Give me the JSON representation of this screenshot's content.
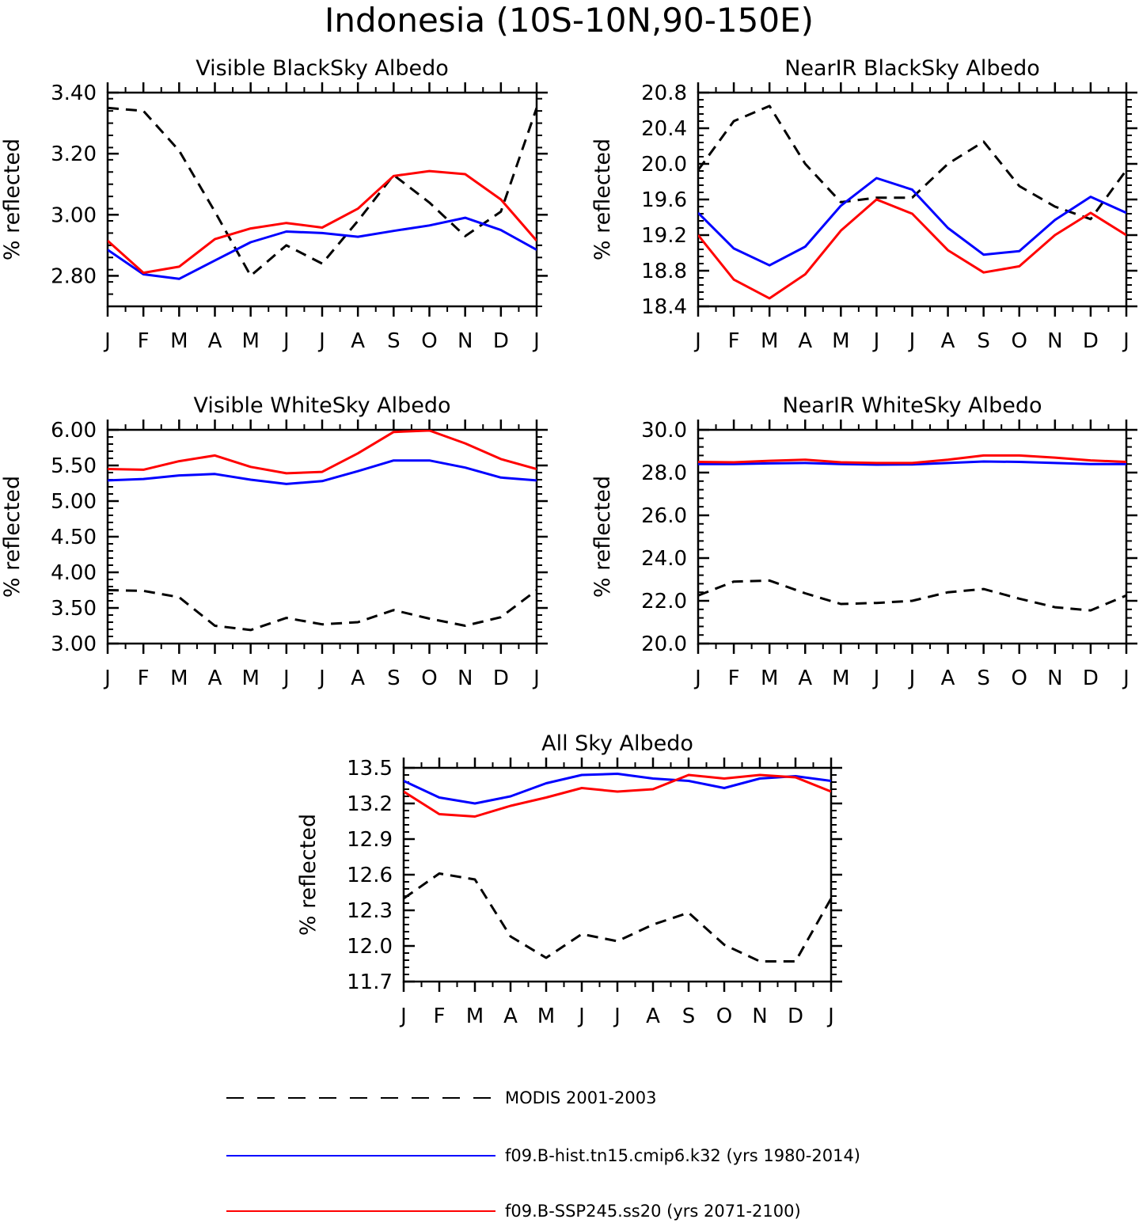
{
  "figure": {
    "title": "Indonesia (10S-10N,90-150E)"
  },
  "legend": [
    {
      "name": "MODIS 2001-2003",
      "color": "#000000",
      "dash": true
    },
    {
      "name": "f09.B-hist.tn15.cmip6.k32 (yrs 1980-2014)",
      "color": "#0000ff",
      "dash": false
    },
    {
      "name": "f09.B-SSP245.ss20 (yrs 2071-2100)",
      "color": "#ff0000",
      "dash": false
    }
  ],
  "chart_data": [
    {
      "type": "line",
      "title": "Visible BlackSky Albedo",
      "ylabel": "% reflected",
      "categories": [
        "J",
        "F",
        "M",
        "A",
        "M",
        "J",
        "J",
        "A",
        "S",
        "O",
        "N",
        "D",
        "J"
      ],
      "ylim": [
        2.7,
        3.4
      ],
      "yticks": [
        "2.80",
        "3.00",
        "3.20",
        "3.40"
      ],
      "series": [
        {
          "name": "MODIS 2001-2003",
          "color": "#000000",
          "dash": true,
          "values": [
            3.35,
            3.34,
            3.21,
            3.01,
            2.8,
            2.9,
            2.84,
            2.98,
            3.13,
            3.04,
            2.93,
            3.01,
            3.35
          ]
        },
        {
          "name": "f09.B-hist.tn15.cmip6.k32 (yrs 1980-2014)",
          "color": "#0000ff",
          "values": [
            2.885,
            2.805,
            2.79,
            2.85,
            2.91,
            2.945,
            2.94,
            2.928,
            2.947,
            2.965,
            2.99,
            2.95,
            2.885
          ]
        },
        {
          "name": "f09.B-SSP245.ss20 (yrs 2071-2100)",
          "color": "#ff0000",
          "values": [
            2.915,
            2.81,
            2.83,
            2.92,
            2.955,
            2.973,
            2.958,
            3.02,
            3.127,
            3.143,
            3.133,
            3.05,
            2.915
          ]
        }
      ]
    },
    {
      "type": "line",
      "title": "NearIR BlackSky Albedo",
      "ylabel": "% reflected",
      "categories": [
        "J",
        "F",
        "M",
        "A",
        "M",
        "J",
        "J",
        "A",
        "S",
        "O",
        "N",
        "D",
        "J"
      ],
      "ylim": [
        18.4,
        20.8
      ],
      "yticks": [
        "18.4",
        "18.8",
        "19.2",
        "19.6",
        "20.0",
        "20.4",
        "20.8"
      ],
      "series": [
        {
          "name": "MODIS 2001-2003",
          "color": "#000000",
          "dash": true,
          "values": [
            19.93,
            20.48,
            20.65,
            20.0,
            19.57,
            19.62,
            19.62,
            20.0,
            20.25,
            19.75,
            19.52,
            19.38,
            19.93
          ]
        },
        {
          "name": "f09.B-hist.tn15.cmip6.k32 (yrs 1980-2014)",
          "color": "#0000ff",
          "values": [
            19.45,
            19.05,
            18.86,
            19.07,
            19.53,
            19.84,
            19.71,
            19.28,
            18.98,
            19.02,
            19.37,
            19.63,
            19.45
          ]
        },
        {
          "name": "f09.B-SSP245.ss20 (yrs 2071-2100)",
          "color": "#ff0000",
          "values": [
            19.2,
            18.7,
            18.49,
            18.76,
            19.25,
            19.6,
            19.44,
            19.03,
            18.78,
            18.85,
            19.2,
            19.45,
            19.2
          ]
        }
      ]
    },
    {
      "type": "line",
      "title": "Visible WhiteSky Albedo",
      "ylabel": "% reflected",
      "categories": [
        "J",
        "F",
        "M",
        "A",
        "M",
        "J",
        "J",
        "A",
        "S",
        "O",
        "N",
        "D",
        "J"
      ],
      "ylim": [
        3.0,
        6.0
      ],
      "yticks": [
        "3.00",
        "3.50",
        "4.00",
        "4.50",
        "5.00",
        "5.50",
        "6.00"
      ],
      "series": [
        {
          "name": "MODIS 2001-2003",
          "color": "#000000",
          "dash": true,
          "values": [
            3.75,
            3.74,
            3.65,
            3.25,
            3.19,
            3.36,
            3.27,
            3.3,
            3.47,
            3.35,
            3.25,
            3.37,
            3.75
          ]
        },
        {
          "name": "f09.B-hist.tn15.cmip6.k32 (yrs 1980-2014)",
          "color": "#0000ff",
          "values": [
            5.29,
            5.31,
            5.36,
            5.38,
            5.3,
            5.24,
            5.28,
            5.42,
            5.57,
            5.57,
            5.47,
            5.33,
            5.29
          ]
        },
        {
          "name": "f09.B-SSP245.ss20 (yrs 2071-2100)",
          "color": "#ff0000",
          "values": [
            5.45,
            5.44,
            5.56,
            5.64,
            5.48,
            5.39,
            5.41,
            5.67,
            5.97,
            5.99,
            5.81,
            5.59,
            5.45
          ]
        }
      ]
    },
    {
      "type": "line",
      "title": "NearIR WhiteSky Albedo",
      "ylabel": "% reflected",
      "categories": [
        "J",
        "F",
        "M",
        "A",
        "M",
        "J",
        "J",
        "A",
        "S",
        "O",
        "N",
        "D",
        "J"
      ],
      "ylim": [
        20.0,
        30.0
      ],
      "yticks": [
        "20.0",
        "22.0",
        "24.0",
        "26.0",
        "28.0",
        "30.0"
      ],
      "series": [
        {
          "name": "MODIS 2001-2003",
          "color": "#000000",
          "dash": true,
          "values": [
            22.25,
            22.9,
            22.95,
            22.35,
            21.85,
            21.9,
            22.0,
            22.4,
            22.55,
            22.1,
            21.7,
            21.55,
            22.25
          ]
        },
        {
          "name": "f09.B-hist.tn15.cmip6.k32 (yrs 1980-2014)",
          "color": "#0000ff",
          "values": [
            28.4,
            28.4,
            28.43,
            28.45,
            28.4,
            28.37,
            28.38,
            28.45,
            28.52,
            28.5,
            28.45,
            28.4,
            28.4
          ]
        },
        {
          "name": "f09.B-SSP245.ss20 (yrs 2071-2100)",
          "color": "#ff0000",
          "values": [
            28.5,
            28.48,
            28.55,
            28.6,
            28.48,
            28.45,
            28.45,
            28.6,
            28.8,
            28.8,
            28.7,
            28.57,
            28.5
          ]
        }
      ]
    },
    {
      "type": "line",
      "title": "All Sky Albedo",
      "ylabel": "% reflected",
      "categories": [
        "J",
        "F",
        "M",
        "A",
        "M",
        "J",
        "J",
        "A",
        "S",
        "O",
        "N",
        "D",
        "J"
      ],
      "ylim": [
        11.7,
        13.5
      ],
      "yticks": [
        "11.7",
        "12.0",
        "12.3",
        "12.6",
        "12.9",
        "13.2",
        "13.5"
      ],
      "series": [
        {
          "name": "MODIS 2001-2003",
          "color": "#000000",
          "dash": true,
          "values": [
            12.4,
            12.61,
            12.56,
            12.08,
            11.9,
            12.1,
            12.04,
            12.18,
            12.28,
            12.01,
            11.87,
            11.87,
            12.4
          ]
        },
        {
          "name": "f09.B-hist.tn15.cmip6.k32 (yrs 1980-2014)",
          "color": "#0000ff",
          "values": [
            13.39,
            13.25,
            13.2,
            13.26,
            13.37,
            13.44,
            13.45,
            13.41,
            13.39,
            13.33,
            13.41,
            13.43,
            13.39
          ]
        },
        {
          "name": "f09.B-SSP245.ss20 (yrs 2071-2100)",
          "color": "#ff0000",
          "values": [
            13.3,
            13.11,
            13.09,
            13.18,
            13.25,
            13.33,
            13.3,
            13.32,
            13.44,
            13.41,
            13.44,
            13.42,
            13.3
          ]
        }
      ]
    }
  ]
}
